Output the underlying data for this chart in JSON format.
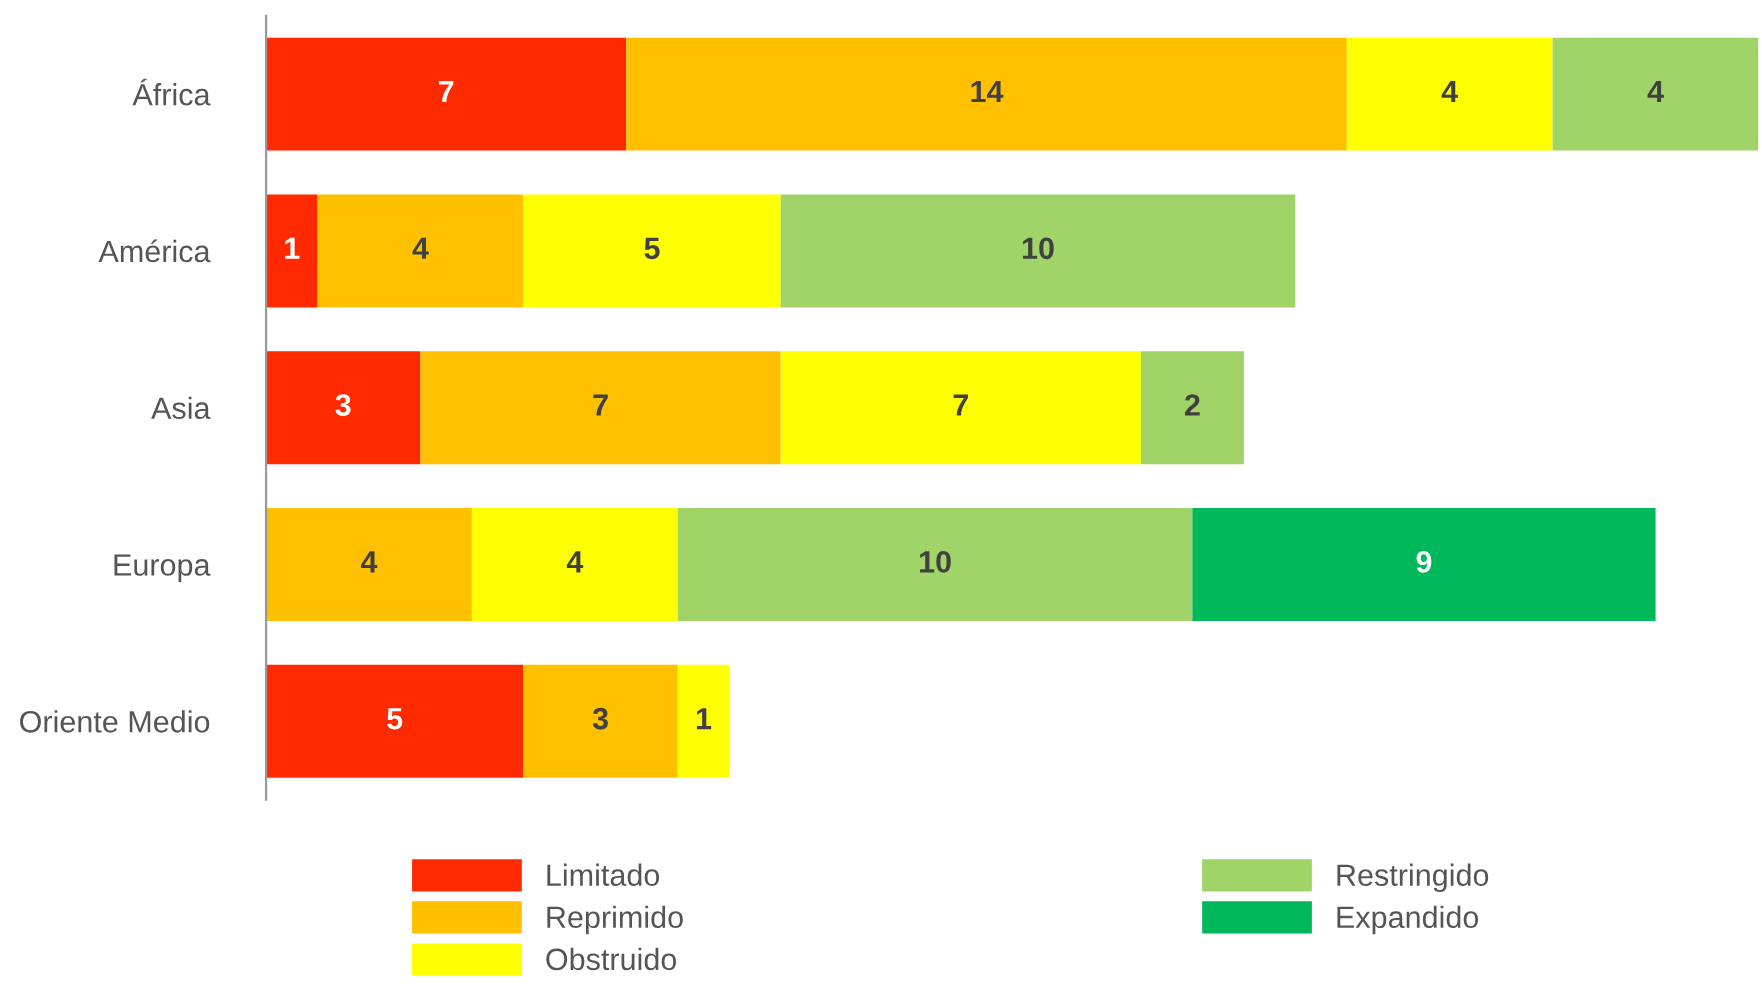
{
  "chart_data": {
    "type": "bar",
    "orientation": "horizontal",
    "stacked": true,
    "data_labels": true,
    "legend": "bottom",
    "grid": false,
    "categories": [
      "África",
      "América",
      "Asia",
      "Europa",
      "Oriente Medio"
    ],
    "series": [
      {
        "name": "Limitado",
        "color": "#ff2a00",
        "values": [
          7,
          1,
          3,
          null,
          5
        ]
      },
      {
        "name": "Reprimido",
        "color": "#ffc000",
        "values": [
          14,
          4,
          7,
          4,
          3
        ]
      },
      {
        "name": "Obstruido",
        "color": "#ffff00",
        "values": [
          4,
          5,
          7,
          4,
          1
        ]
      },
      {
        "name": "Restringido",
        "color": "#a0d468",
        "values": [
          4,
          10,
          2,
          10,
          null
        ]
      },
      {
        "name": "Expandido",
        "color": "#00b85c",
        "values": [
          null,
          null,
          null,
          9,
          null
        ]
      }
    ]
  }
}
